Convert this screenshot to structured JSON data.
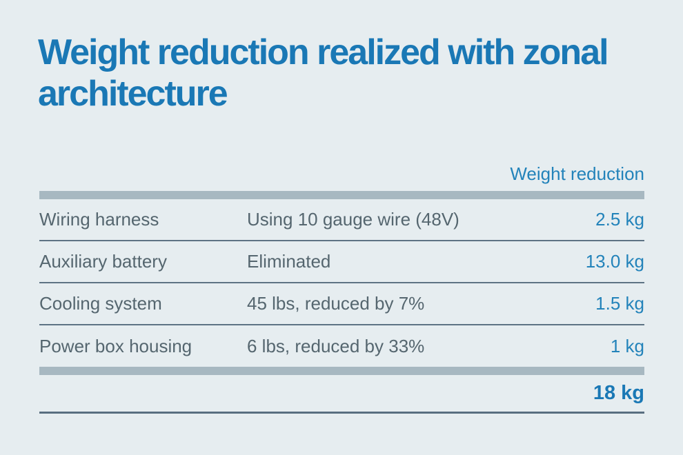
{
  "page": {
    "background_color": "#e6edf0"
  },
  "colors": {
    "title_blue": "#1a78b5",
    "value_blue": "#2383ba",
    "body_slate": "#55666f",
    "thick_bar_gray": "#a7b8c1",
    "divider_slate": "#5d7384",
    "bottom_rule_slate": "#586e80"
  },
  "chart_data": {
    "type": "table",
    "title": "Weight reduction realized with zonal architecture",
    "column_header": "Weight reduction",
    "rows": [
      {
        "item": "Wiring harness",
        "detail": "Using 10 gauge wire (48V)",
        "value": "2.5 kg",
        "value_kg": 2.5
      },
      {
        "item": "Auxiliary battery",
        "detail": "Eliminated",
        "value": "13.0 kg",
        "value_kg": 13.0
      },
      {
        "item": "Cooling system",
        "detail": "45 lbs, reduced by 7%",
        "value": "1.5 kg",
        "value_kg": 1.5
      },
      {
        "item": "Power box housing",
        "detail": "6 lbs, reduced by 33%",
        "value": "1 kg",
        "value_kg": 1.0
      }
    ],
    "total": {
      "label": "18 kg",
      "value_kg": 18
    }
  }
}
